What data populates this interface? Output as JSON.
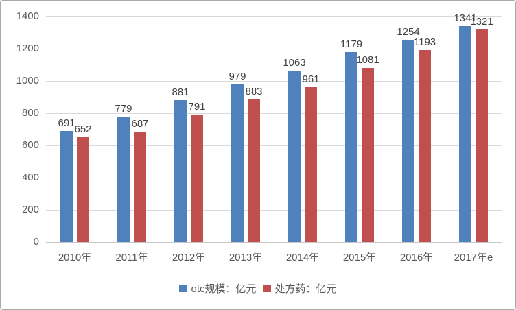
{
  "chart_data": {
    "type": "bar",
    "title": "",
    "xlabel": "",
    "ylabel": "",
    "categories": [
      "2010年",
      "2011年",
      "2012年",
      "2013年",
      "2014年",
      "2015年",
      "2016年",
      "2017年e"
    ],
    "series": [
      {
        "name": "otc规模：亿元",
        "color": "#4f81bd",
        "values": [
          691,
          779,
          881,
          979,
          1063,
          1179,
          1254,
          1341
        ]
      },
      {
        "name": "处方药：亿元",
        "color": "#c0504d",
        "values": [
          652,
          687,
          791,
          883,
          961,
          1081,
          1193,
          1321
        ]
      }
    ],
    "ylim": [
      0,
      1400
    ],
    "ytick_step": 200,
    "yticks": [
      0,
      200,
      400,
      600,
      800,
      1000,
      1200,
      1400
    ],
    "grid": true,
    "data_labels": true,
    "legend_position": "bottom"
  },
  "colors": {
    "grid": "#d9d9d9",
    "axis_text": "#595959",
    "data_label_text": "#404040",
    "background": "#ffffff",
    "frame_border": "#a9a9a9"
  }
}
